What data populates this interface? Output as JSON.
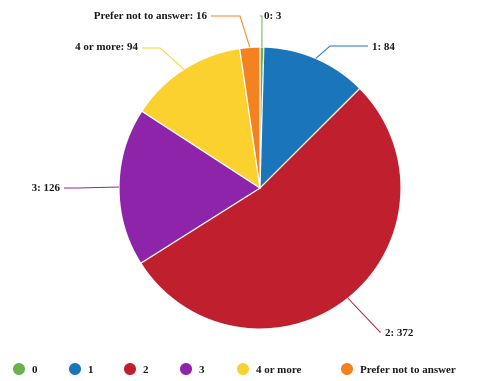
{
  "chart_data": {
    "type": "pie",
    "title": "",
    "start_angle_deg": 0,
    "direction": "clockwise",
    "legend_position": "bottom",
    "slices": [
      {
        "label": "0",
        "value": 3,
        "data_label": "0: 3",
        "color": "#6ab04c"
      },
      {
        "label": "1",
        "value": 84,
        "data_label": "1: 84",
        "color": "#1b75bb"
      },
      {
        "label": "2",
        "value": 372,
        "data_label": "2: 372",
        "color": "#c0202e"
      },
      {
        "label": "3",
        "value": 126,
        "data_label": "3: 126",
        "color": "#8e24aa"
      },
      {
        "label": "4 or more",
        "value": 94,
        "data_label": "4 or more: 94",
        "color": "#fbd130"
      },
      {
        "label": "Prefer not to answer",
        "value": 16,
        "data_label": "Prefer not to answer: 16",
        "color": "#f58220"
      }
    ]
  }
}
